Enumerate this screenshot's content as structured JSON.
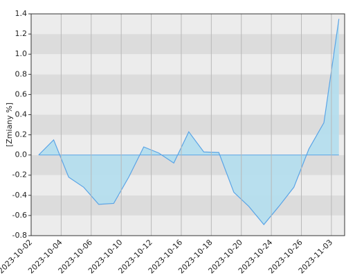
{
  "chart_data": {
    "type": "area",
    "y_label": "[Zmiany %]",
    "x": [
      0.25,
      0.75,
      1.25,
      1.75,
      2.25,
      2.75,
      3.25,
      3.75,
      4.25,
      4.75,
      5.25,
      5.75,
      6.25,
      6.75,
      7.25,
      7.75,
      8.25,
      8.75,
      9.25,
      9.75,
      10.25
    ],
    "values": [
      0.0,
      0.15,
      -0.22,
      -0.32,
      -0.49,
      -0.48,
      -0.22,
      0.08,
      0.02,
      -0.08,
      0.23,
      0.03,
      0.025,
      -0.37,
      -0.51,
      -0.69,
      -0.51,
      -0.32,
      0.06,
      0.32,
      1.35
    ],
    "color": "#5aa4e6",
    "fill": "#b3deee",
    "xlim": [
      0,
      10.44
    ],
    "xticks": [
      {
        "value": 0,
        "label": "2023-10-02"
      },
      {
        "value": 1,
        "label": "2023-10-04"
      },
      {
        "value": 2,
        "label": "2023-10-06"
      },
      {
        "value": 3,
        "label": "2023-10-10"
      },
      {
        "value": 4,
        "label": "2023-10-12"
      },
      {
        "value": 5,
        "label": "2023-10-16"
      },
      {
        "value": 6,
        "label": "2023-10-18"
      },
      {
        "value": 7,
        "label": "2023-10-20"
      },
      {
        "value": 8,
        "label": "2023-10-24"
      },
      {
        "value": 9,
        "label": "2023-10-26"
      },
      {
        "value": 10,
        "label": "2023-11-03"
      }
    ],
    "ylim": [
      -0.8,
      1.4
    ],
    "yticks": [
      {
        "value": -0.8,
        "label": "-0.8"
      },
      {
        "value": -0.6,
        "label": "-0.6"
      },
      {
        "value": -0.4,
        "label": "-0.4"
      },
      {
        "value": -0.2,
        "label": "-0.2"
      },
      {
        "value": 0,
        "label": "0.0"
      },
      {
        "value": 0.2,
        "label": "0.2"
      },
      {
        "value": 0.4,
        "label": "0.4"
      },
      {
        "value": 0.6,
        "label": "0.6"
      },
      {
        "value": 0.8,
        "label": "0.8"
      },
      {
        "value": 1.0,
        "label": "1.0"
      },
      {
        "value": 1.2,
        "label": "1.2"
      },
      {
        "value": 1.4,
        "label": "1.4"
      }
    ],
    "grid": true
  }
}
